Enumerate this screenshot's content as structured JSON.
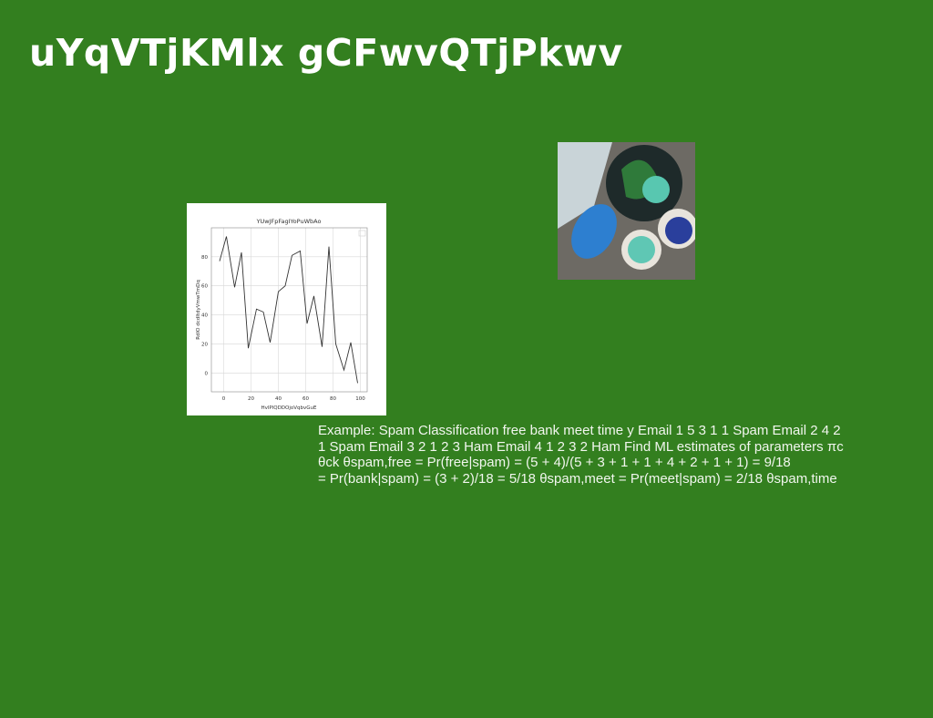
{
  "header": {
    "title": "uYqVTjKMlx gCFwvQTjPkwv"
  },
  "chart_data": {
    "type": "line",
    "title": "YUwJFpFagIYoPuWbAo",
    "xlabel": "HvlPlQDDOjoVqbvGuE",
    "ylabel": "RdIO dcdItdyVmwTmDq",
    "x": [
      -3,
      2,
      8,
      13,
      18,
      24,
      29,
      34,
      40,
      45,
      50,
      56,
      61,
      66,
      72,
      77,
      82,
      88,
      93,
      98
    ],
    "series": [
      {
        "name": "",
        "color": "#333333",
        "values": [
          77,
          94,
          59,
          83,
          17,
          44,
          42,
          21,
          56,
          60,
          81,
          84,
          34,
          53,
          18,
          87,
          20,
          2,
          21,
          -7
        ]
      }
    ],
    "xlim": [
      -9,
      105
    ],
    "ylim": [
      -13,
      100
    ],
    "xticks": [
      0,
      20,
      40,
      60,
      80,
      100
    ],
    "yticks": [
      0,
      20,
      40,
      60,
      80
    ],
    "grid": true
  },
  "text": {
    "lines": [
      "Example: Spam Classification free bank meet time y Email 1 5 3 1 1 Spam Email 2 4 2",
      "1 Spam Email 3 2 1 2 3 Ham Email 4 1 2 3 2 Ham Find ML estimates of parameters πc",
      "θck θspam,free = Pr(free|spam) = (5 + 4)/(5 + 3 + 1 + 1 + 4 + 2 + 1 + 1) = 9/18",
      "= Pr(bank|spam) = (3 + 2)/18 = 5/18 θspam,meet = Pr(meet|spam) = 2/18 θspam,time"
    ]
  }
}
